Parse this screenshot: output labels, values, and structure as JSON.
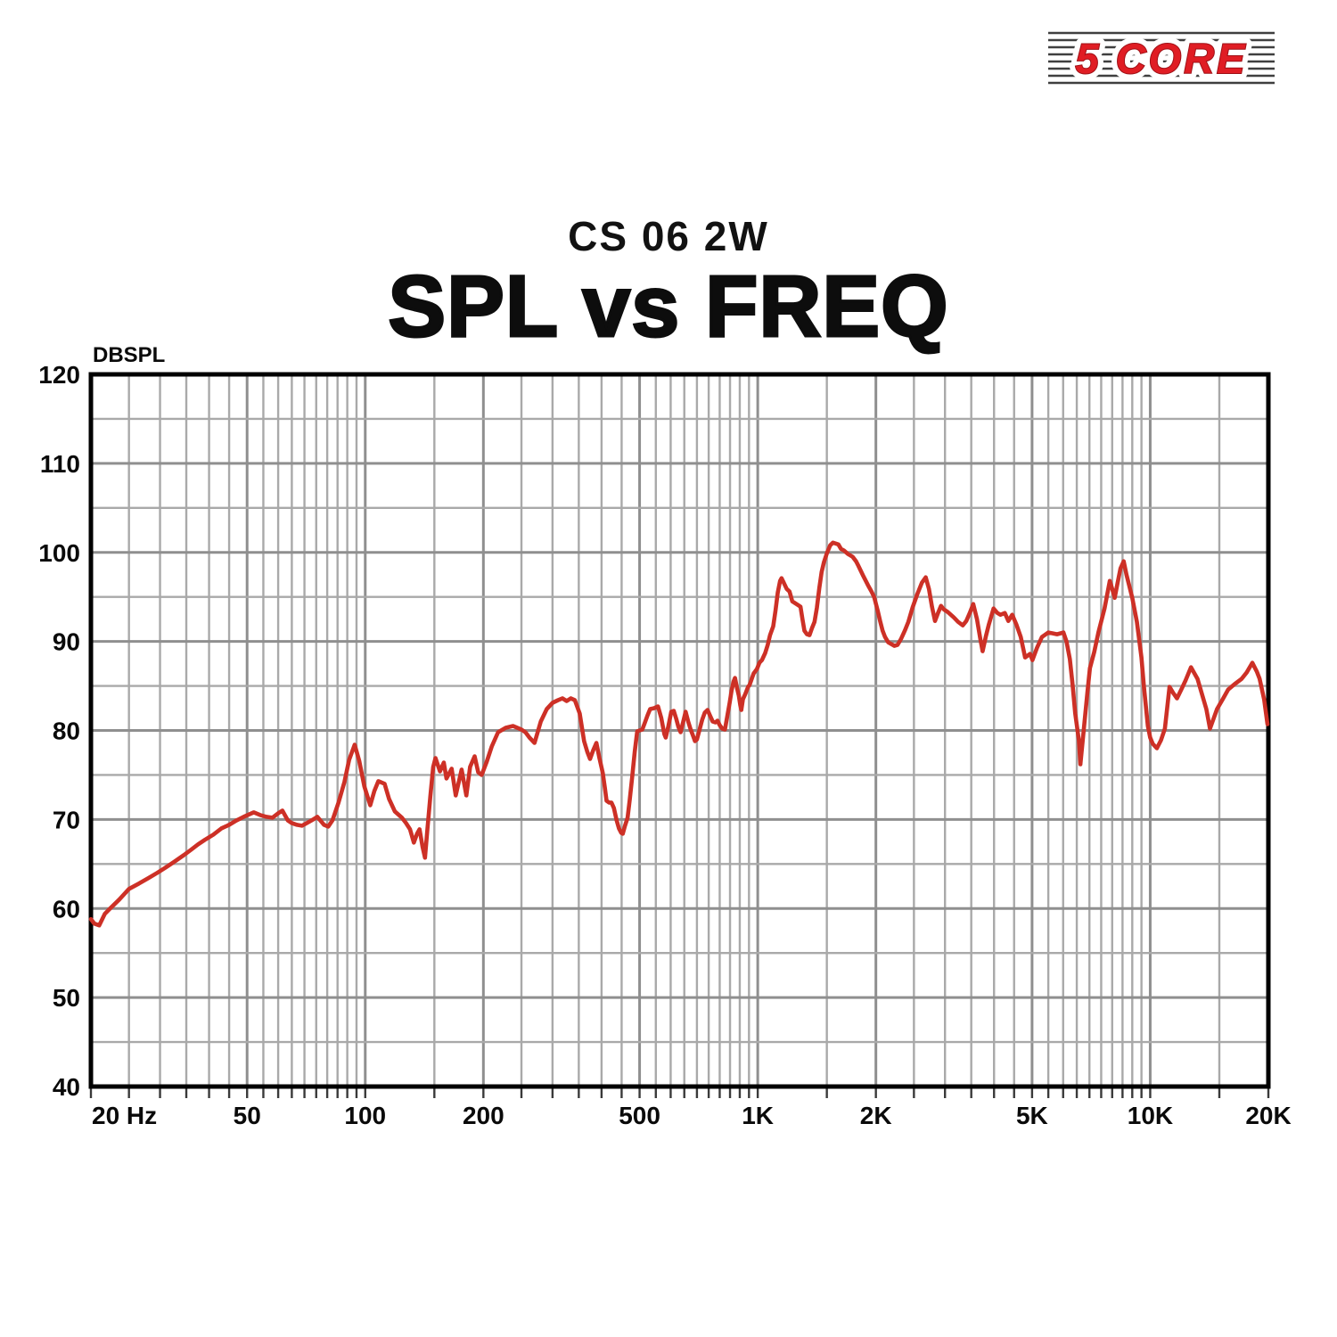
{
  "brand": {
    "name": "5 CORE",
    "text_color": "#e01d24"
  },
  "header": {
    "subtitle": "CS 06 2W",
    "title": "SPL vs FREQ"
  },
  "colors": {
    "background": "#ffffff",
    "grid_minor": "#a9a9a9",
    "grid_major": "#8f8f8f",
    "frame": "#000000",
    "tick": "#3a3a3a",
    "curve": "#cd3026"
  },
  "chart_data": {
    "type": "line",
    "title": "SPL vs FREQ",
    "subtitle": "CS 06 2W",
    "ylabel": "DBSPL",
    "xlabel": "",
    "x_scale": "log",
    "xlim": [
      20,
      20000
    ],
    "ylim": [
      40,
      120
    ],
    "y_major_step": 10,
    "y_minor_step": 5,
    "grid": true,
    "legend_position": "none",
    "x_ticks": [
      {
        "f": 20,
        "label": "20 Hz"
      },
      {
        "f": 50,
        "label": "50"
      },
      {
        "f": 100,
        "label": "100"
      },
      {
        "f": 200,
        "label": "200"
      },
      {
        "f": 500,
        "label": "500"
      },
      {
        "f": 1000,
        "label": "1K"
      },
      {
        "f": 2000,
        "label": "2K"
      },
      {
        "f": 5000,
        "label": "5K"
      },
      {
        "f": 10000,
        "label": "10K"
      },
      {
        "f": 20000,
        "label": "20K"
      }
    ],
    "y_tick_labels": [
      "120",
      "110",
      "100",
      "90",
      "80",
      "70",
      "60",
      "50",
      "40"
    ],
    "x_minor_pattern": [
      1,
      1.5,
      2,
      2.5,
      3,
      3.5,
      4,
      4.5,
      5,
      5.5,
      6,
      6.5,
      7,
      7.5,
      8,
      8.5,
      9,
      9.5
    ],
    "series": [
      {
        "name": "SPL",
        "color": "#cd3026",
        "points": [
          [
            20,
            58.8
          ],
          [
            20.4,
            58.3
          ],
          [
            21,
            58.1
          ],
          [
            21.7,
            59.4
          ],
          [
            22.5,
            60.1
          ],
          [
            23.6,
            61.0
          ],
          [
            25,
            62.2
          ],
          [
            26.5,
            62.8
          ],
          [
            28,
            63.4
          ],
          [
            29.5,
            64.0
          ],
          [
            31,
            64.6
          ],
          [
            32.5,
            65.2
          ],
          [
            34.5,
            66.0
          ],
          [
            36,
            66.6
          ],
          [
            37.5,
            67.2
          ],
          [
            39,
            67.7
          ],
          [
            41,
            68.3
          ],
          [
            43,
            69.0
          ],
          [
            45,
            69.4
          ],
          [
            47,
            69.9
          ],
          [
            49,
            70.3
          ],
          [
            52,
            70.8
          ],
          [
            54,
            70.5
          ],
          [
            56,
            70.3
          ],
          [
            58,
            70.2
          ],
          [
            60,
            70.7
          ],
          [
            61.5,
            71.0
          ],
          [
            63.5,
            69.9
          ],
          [
            65,
            69.6
          ],
          [
            67,
            69.4
          ],
          [
            69,
            69.3
          ],
          [
            71,
            69.6
          ],
          [
            73,
            69.9
          ],
          [
            75.5,
            70.3
          ],
          [
            78.5,
            69.4
          ],
          [
            80.5,
            69.2
          ],
          [
            82.5,
            69.9
          ],
          [
            85.5,
            71.9
          ],
          [
            88.5,
            74.2
          ],
          [
            91,
            76.7
          ],
          [
            94,
            78.4
          ],
          [
            96.5,
            76.6
          ],
          [
            99.5,
            73.7
          ],
          [
            103,
            71.6
          ],
          [
            105.5,
            73.2
          ],
          [
            108,
            74.3
          ],
          [
            112,
            74.0
          ],
          [
            115,
            72.3
          ],
          [
            119,
            70.9
          ],
          [
            124,
            70.2
          ],
          [
            127,
            69.6
          ],
          [
            130,
            68.9
          ],
          [
            133,
            67.4
          ],
          [
            135.5,
            68.4
          ],
          [
            137.5,
            68.9
          ],
          [
            140,
            66.9
          ],
          [
            142,
            65.7
          ],
          [
            144,
            68.9
          ],
          [
            146.5,
            72.6
          ],
          [
            149,
            75.9
          ],
          [
            151,
            76.9
          ],
          [
            155,
            75.4
          ],
          [
            158.5,
            76.4
          ],
          [
            161,
            74.6
          ],
          [
            166,
            75.7
          ],
          [
            170,
            72.7
          ],
          [
            176,
            75.6
          ],
          [
            181,
            72.7
          ],
          [
            185,
            75.9
          ],
          [
            190,
            77.1
          ],
          [
            194,
            75.3
          ],
          [
            198,
            75.0
          ],
          [
            204,
            76.5
          ],
          [
            210,
            78.2
          ],
          [
            218,
            79.8
          ],
          [
            228,
            80.3
          ],
          [
            238,
            80.5
          ],
          [
            250,
            80.1
          ],
          [
            256,
            79.8
          ],
          [
            262,
            79.2
          ],
          [
            270,
            78.6
          ],
          [
            280,
            81.0
          ],
          [
            290,
            82.4
          ],
          [
            300,
            83.1
          ],
          [
            310,
            83.4
          ],
          [
            318,
            83.6
          ],
          [
            326,
            83.3
          ],
          [
            334,
            83.6
          ],
          [
            342,
            83.4
          ],
          [
            352,
            81.9
          ],
          [
            361,
            78.8
          ],
          [
            368,
            77.6
          ],
          [
            374,
            76.8
          ],
          [
            381,
            77.8
          ],
          [
            388,
            78.6
          ],
          [
            395,
            76.9
          ],
          [
            403,
            75.2
          ],
          [
            408,
            73.5
          ],
          [
            412,
            72.1
          ],
          [
            418,
            71.9
          ],
          [
            424,
            71.9
          ],
          [
            430,
            71.3
          ],
          [
            437,
            69.9
          ],
          [
            443,
            69.0
          ],
          [
            449,
            68.5
          ],
          [
            453,
            68.4
          ],
          [
            459,
            69.3
          ],
          [
            466,
            70.2
          ],
          [
            472,
            72.2
          ],
          [
            479,
            74.9
          ],
          [
            486,
            77.6
          ],
          [
            493,
            79.9
          ],
          [
            500,
            80.0
          ],
          [
            508,
            80.1
          ],
          [
            516,
            80.9
          ],
          [
            524,
            81.7
          ],
          [
            532,
            82.4
          ],
          [
            545,
            82.5
          ],
          [
            557,
            82.7
          ],
          [
            568,
            81.4
          ],
          [
            578,
            79.6
          ],
          [
            583,
            79.2
          ],
          [
            592,
            80.5
          ],
          [
            602,
            82.1
          ],
          [
            611,
            82.2
          ],
          [
            620,
            81.3
          ],
          [
            628,
            80.4
          ],
          [
            636,
            79.8
          ],
          [
            645,
            80.9
          ],
          [
            655,
            82.1
          ],
          [
            665,
            81.0
          ],
          [
            675,
            80.1
          ],
          [
            683,
            79.5
          ],
          [
            692,
            78.8
          ],
          [
            700,
            79.0
          ],
          [
            710,
            80.0
          ],
          [
            722,
            81.2
          ],
          [
            733,
            82.0
          ],
          [
            745,
            82.3
          ],
          [
            757,
            81.6
          ],
          [
            768,
            81.0
          ],
          [
            780,
            80.9
          ],
          [
            790,
            81.1
          ],
          [
            800,
            80.6
          ],
          [
            812,
            80.2
          ],
          [
            825,
            80.1
          ],
          [
            838,
            81.8
          ],
          [
            848,
            83.1
          ],
          [
            858,
            84.5
          ],
          [
            868,
            85.5
          ],
          [
            875,
            85.9
          ],
          [
            885,
            84.8
          ],
          [
            895,
            83.9
          ],
          [
            903,
            82.8
          ],
          [
            908,
            82.3
          ],
          [
            917,
            83.5
          ],
          [
            930,
            84.1
          ],
          [
            945,
            84.9
          ],
          [
            953,
            85.1
          ],
          [
            962,
            85.6
          ],
          [
            976,
            86.4
          ],
          [
            995,
            86.9
          ],
          [
            1010,
            87.6
          ],
          [
            1025,
            87.9
          ],
          [
            1045,
            88.7
          ],
          [
            1060,
            89.6
          ],
          [
            1075,
            90.7
          ],
          [
            1095,
            91.7
          ],
          [
            1110,
            93.5
          ],
          [
            1125,
            95.5
          ],
          [
            1140,
            96.8
          ],
          [
            1150,
            97.1
          ],
          [
            1165,
            96.6
          ],
          [
            1185,
            95.9
          ],
          [
            1205,
            95.6
          ],
          [
            1225,
            94.5
          ],
          [
            1245,
            94.3
          ],
          [
            1265,
            94.1
          ],
          [
            1285,
            93.9
          ],
          [
            1300,
            92.5
          ],
          [
            1315,
            91.2
          ],
          [
            1335,
            90.8
          ],
          [
            1355,
            90.7
          ],
          [
            1375,
            91.5
          ],
          [
            1395,
            92.2
          ],
          [
            1415,
            93.8
          ],
          [
            1435,
            96.0
          ],
          [
            1455,
            97.8
          ],
          [
            1475,
            98.9
          ],
          [
            1500,
            99.9
          ],
          [
            1530,
            100.8
          ],
          [
            1555,
            101.1
          ],
          [
            1580,
            101.0
          ],
          [
            1605,
            100.9
          ],
          [
            1630,
            100.4
          ],
          [
            1660,
            100.2
          ],
          [
            1700,
            99.8
          ],
          [
            1745,
            99.5
          ],
          [
            1780,
            99.0
          ],
          [
            1805,
            98.5
          ],
          [
            1855,
            97.4
          ],
          [
            1910,
            96.3
          ],
          [
            1950,
            95.6
          ],
          [
            1980,
            95.0
          ],
          [
            2020,
            93.5
          ],
          [
            2050,
            92.3
          ],
          [
            2080,
            91.2
          ],
          [
            2110,
            90.5
          ],
          [
            2150,
            89.9
          ],
          [
            2190,
            89.7
          ],
          [
            2230,
            89.5
          ],
          [
            2270,
            89.6
          ],
          [
            2320,
            90.3
          ],
          [
            2370,
            91.2
          ],
          [
            2420,
            92.2
          ],
          [
            2480,
            93.8
          ],
          [
            2550,
            95.3
          ],
          [
            2620,
            96.6
          ],
          [
            2680,
            97.2
          ],
          [
            2730,
            95.9
          ],
          [
            2780,
            93.9
          ],
          [
            2830,
            92.3
          ],
          [
            2880,
            93.2
          ],
          [
            2930,
            94.0
          ],
          [
            2980,
            93.6
          ],
          [
            3050,
            93.3
          ],
          [
            3160,
            92.7
          ],
          [
            3240,
            92.2
          ],
          [
            3330,
            91.8
          ],
          [
            3400,
            92.3
          ],
          [
            3470,
            93.2
          ],
          [
            3540,
            94.2
          ],
          [
            3620,
            92.5
          ],
          [
            3690,
            90.3
          ],
          [
            3740,
            88.9
          ],
          [
            3810,
            90.5
          ],
          [
            3880,
            91.9
          ],
          [
            3990,
            93.7
          ],
          [
            4080,
            93.2
          ],
          [
            4150,
            93.0
          ],
          [
            4260,
            93.2
          ],
          [
            4350,
            92.3
          ],
          [
            4450,
            93.0
          ],
          [
            4560,
            91.9
          ],
          [
            4680,
            90.5
          ],
          [
            4800,
            88.2
          ],
          [
            4940,
            88.6
          ],
          [
            5010,
            87.9
          ],
          [
            5150,
            89.3
          ],
          [
            5300,
            90.5
          ],
          [
            5500,
            91.0
          ],
          [
            5650,
            90.9
          ],
          [
            5790,
            90.8
          ],
          [
            5900,
            90.9
          ],
          [
            6010,
            91.0
          ],
          [
            6120,
            90.0
          ],
          [
            6240,
            88.0
          ],
          [
            6340,
            85.2
          ],
          [
            6440,
            81.9
          ],
          [
            6580,
            78.9
          ],
          [
            6640,
            76.2
          ],
          [
            6780,
            80.3
          ],
          [
            6920,
            84.3
          ],
          [
            7020,
            87.0
          ],
          [
            7200,
            88.8
          ],
          [
            7380,
            91.0
          ],
          [
            7650,
            93.7
          ],
          [
            7890,
            96.8
          ],
          [
            8000,
            95.9
          ],
          [
            8120,
            94.9
          ],
          [
            8250,
            96.5
          ],
          [
            8400,
            98.2
          ],
          [
            8560,
            99.0
          ],
          [
            8700,
            97.5
          ],
          [
            9000,
            94.9
          ],
          [
            9250,
            92.2
          ],
          [
            9500,
            88.2
          ],
          [
            9640,
            84.9
          ],
          [
            9860,
            80.5
          ],
          [
            10000,
            79.2
          ],
          [
            10150,
            78.5
          ],
          [
            10400,
            78.0
          ],
          [
            10650,
            78.9
          ],
          [
            10900,
            80.2
          ],
          [
            11200,
            84.9
          ],
          [
            11450,
            84.2
          ],
          [
            11700,
            83.6
          ],
          [
            12000,
            84.6
          ],
          [
            12300,
            85.6
          ],
          [
            12700,
            87.1
          ],
          [
            13200,
            85.8
          ],
          [
            13900,
            82.4
          ],
          [
            14200,
            80.2
          ],
          [
            14800,
            82.4
          ],
          [
            15300,
            83.5
          ],
          [
            15800,
            84.6
          ],
          [
            16400,
            85.2
          ],
          [
            17100,
            85.8
          ],
          [
            17600,
            86.5
          ],
          [
            18200,
            87.6
          ],
          [
            18700,
            86.6
          ],
          [
            19000,
            85.8
          ],
          [
            19500,
            83.5
          ],
          [
            19900,
            80.7
          ]
        ]
      }
    ]
  }
}
